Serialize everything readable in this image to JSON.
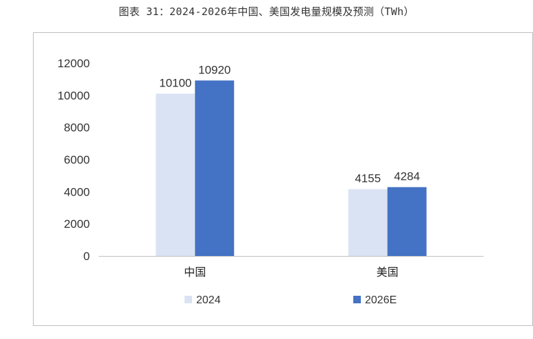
{
  "figure_title": "图表 31：2024-2026年中国、美国发电量规模及预测（TWh）",
  "chart_data": {
    "type": "bar",
    "title": "",
    "categories": [
      "中国",
      "美国"
    ],
    "series": [
      {
        "name": "2024",
        "color": "#dae3f3",
        "values": [
          10100,
          4155
        ]
      },
      {
        "name": "2026E",
        "color": "#4472c4",
        "values": [
          10920,
          4284
        ]
      }
    ],
    "y_ticks": [
      "0",
      "2000",
      "4000",
      "6000",
      "8000",
      "10000",
      "12000"
    ],
    "ylim": [
      0,
      12000
    ],
    "xlabel": "",
    "ylabel": "",
    "grid": false,
    "legend_position": "bottom"
  }
}
